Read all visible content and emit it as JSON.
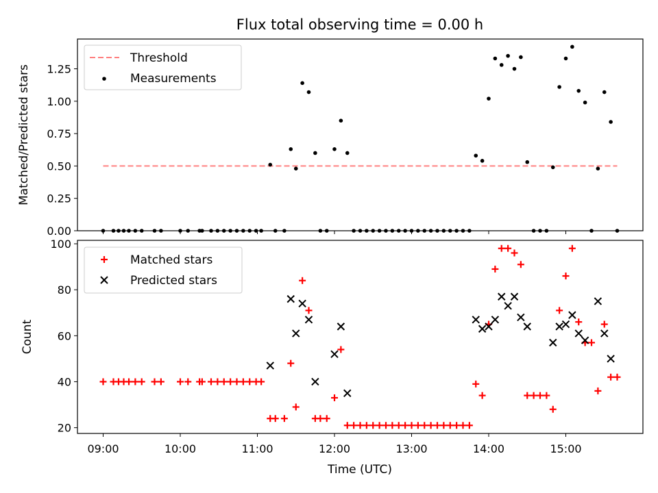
{
  "chart_data": [
    {
      "type": "scatter",
      "title": "Flux total observing time = 0.00 h",
      "xlabel": "",
      "ylabel": "Matched/Predicted stars",
      "xlim": [
        "08:40",
        "16:00"
      ],
      "ylim": [
        0,
        1.48
      ],
      "yticks": [
        0,
        0.25,
        0.5,
        0.75,
        1.0,
        1.25
      ],
      "ytick_labels": [
        "0.00",
        "0.25",
        "0.50",
        "0.75",
        "1.00",
        "1.25"
      ],
      "xticks": [
        "09:00",
        "10:00",
        "11:00",
        "12:00",
        "13:00",
        "14:00",
        "15:00"
      ],
      "legend_position": "top-left",
      "grid": false,
      "threshold": {
        "name": "Threshold",
        "value": 0.5,
        "x_start": "09:00",
        "x_end": "15:40",
        "color": "#ff7f7f"
      },
      "series": [
        {
          "name": "Measurements",
          "color": "#000000",
          "marker": "dot",
          "points": [
            [
              "09:00",
              0
            ],
            [
              "09:08",
              0
            ],
            [
              "09:12",
              0
            ],
            [
              "09:16",
              0
            ],
            [
              "09:20",
              0
            ],
            [
              "09:25",
              0
            ],
            [
              "09:30",
              0
            ],
            [
              "09:40",
              0
            ],
            [
              "09:45",
              0
            ],
            [
              "10:00",
              0
            ],
            [
              "10:06",
              0
            ],
            [
              "10:15",
              0
            ],
            [
              "10:17",
              0
            ],
            [
              "10:24",
              0
            ],
            [
              "10:29",
              0
            ],
            [
              "10:34",
              0
            ],
            [
              "10:39",
              0
            ],
            [
              "10:44",
              0
            ],
            [
              "10:49",
              0
            ],
            [
              "10:54",
              0
            ],
            [
              "10:59",
              0
            ],
            [
              "11:03",
              0
            ],
            [
              "11:10",
              0.51
            ],
            [
              "11:14",
              0
            ],
            [
              "11:21",
              0
            ],
            [
              "11:26",
              0.63
            ],
            [
              "11:30",
              0.48
            ],
            [
              "11:35",
              1.14
            ],
            [
              "11:40",
              1.07
            ],
            [
              "11:45",
              0.6
            ],
            [
              "11:49",
              0
            ],
            [
              "11:54",
              0
            ],
            [
              "12:00",
              0.63
            ],
            [
              "12:05",
              0.85
            ],
            [
              "12:10",
              0.6
            ],
            [
              "12:15",
              0
            ],
            [
              "12:20",
              0
            ],
            [
              "12:25",
              0
            ],
            [
              "12:30",
              0
            ],
            [
              "12:35",
              0
            ],
            [
              "12:40",
              0
            ],
            [
              "12:45",
              0
            ],
            [
              "12:50",
              0
            ],
            [
              "12:55",
              0
            ],
            [
              "13:00",
              0
            ],
            [
              "13:05",
              0
            ],
            [
              "13:10",
              0
            ],
            [
              "13:15",
              0
            ],
            [
              "13:20",
              0
            ],
            [
              "13:25",
              0
            ],
            [
              "13:30",
              0
            ],
            [
              "13:35",
              0
            ],
            [
              "13:40",
              0
            ],
            [
              "13:45",
              0
            ],
            [
              "13:50",
              0.58
            ],
            [
              "13:55",
              0.54
            ],
            [
              "14:00",
              1.02
            ],
            [
              "14:05",
              1.33
            ],
            [
              "14:10",
              1.28
            ],
            [
              "14:15",
              1.35
            ],
            [
              "14:20",
              1.25
            ],
            [
              "14:25",
              1.34
            ],
            [
              "14:30",
              0.53
            ],
            [
              "14:35",
              0
            ],
            [
              "14:40",
              0
            ],
            [
              "14:45",
              0
            ],
            [
              "14:50",
              0.49
            ],
            [
              "14:55",
              1.11
            ],
            [
              "15:00",
              1.33
            ],
            [
              "15:05",
              1.42
            ],
            [
              "15:10",
              1.08
            ],
            [
              "15:15",
              0.99
            ],
            [
              "15:20",
              0
            ],
            [
              "15:25",
              0.48
            ],
            [
              "15:30",
              1.07
            ],
            [
              "15:35",
              0.84
            ],
            [
              "15:40",
              0
            ]
          ]
        }
      ]
    },
    {
      "type": "scatter",
      "title": "",
      "xlabel": "Time (UTC)",
      "ylabel": "Count",
      "xlim": [
        "08:40",
        "16:00"
      ],
      "ylim": [
        17.5,
        101.5
      ],
      "yticks": [
        20,
        40,
        60,
        80,
        100
      ],
      "ytick_labels": [
        "20",
        "40",
        "60",
        "80",
        "100"
      ],
      "xticks": [
        "09:00",
        "10:00",
        "11:00",
        "12:00",
        "13:00",
        "14:00",
        "15:00"
      ],
      "xtick_labels": [
        "09:00",
        "10:00",
        "11:00",
        "12:00",
        "13:00",
        "14:00",
        "15:00"
      ],
      "legend_position": "top-left",
      "grid": false,
      "series": [
        {
          "name": "Matched stars",
          "color": "#ff0000",
          "marker": "plus",
          "points": [
            [
              "09:00",
              40
            ],
            [
              "09:08",
              40
            ],
            [
              "09:12",
              40
            ],
            [
              "09:16",
              40
            ],
            [
              "09:20",
              40
            ],
            [
              "09:25",
              40
            ],
            [
              "09:30",
              40
            ],
            [
              "09:40",
              40
            ],
            [
              "09:45",
              40
            ],
            [
              "10:00",
              40
            ],
            [
              "10:06",
              40
            ],
            [
              "10:15",
              40
            ],
            [
              "10:17",
              40
            ],
            [
              "10:24",
              40
            ],
            [
              "10:29",
              40
            ],
            [
              "10:34",
              40
            ],
            [
              "10:39",
              40
            ],
            [
              "10:44",
              40
            ],
            [
              "10:49",
              40
            ],
            [
              "10:54",
              40
            ],
            [
              "10:59",
              40
            ],
            [
              "11:03",
              40
            ],
            [
              "11:10",
              24
            ],
            [
              "11:14",
              24
            ],
            [
              "11:21",
              24
            ],
            [
              "11:26",
              48
            ],
            [
              "11:30",
              29
            ],
            [
              "11:35",
              84
            ],
            [
              "11:40",
              71
            ],
            [
              "11:45",
              24
            ],
            [
              "11:49",
              24
            ],
            [
              "11:54",
              24
            ],
            [
              "12:00",
              33
            ],
            [
              "12:05",
              54
            ],
            [
              "12:10",
              21
            ],
            [
              "12:15",
              21
            ],
            [
              "12:20",
              21
            ],
            [
              "12:25",
              21
            ],
            [
              "12:30",
              21
            ],
            [
              "12:35",
              21
            ],
            [
              "12:40",
              21
            ],
            [
              "12:45",
              21
            ],
            [
              "12:50",
              21
            ],
            [
              "12:55",
              21
            ],
            [
              "13:00",
              21
            ],
            [
              "13:05",
              21
            ],
            [
              "13:10",
              21
            ],
            [
              "13:15",
              21
            ],
            [
              "13:20",
              21
            ],
            [
              "13:25",
              21
            ],
            [
              "13:30",
              21
            ],
            [
              "13:35",
              21
            ],
            [
              "13:40",
              21
            ],
            [
              "13:45",
              21
            ],
            [
              "13:50",
              39
            ],
            [
              "13:55",
              34
            ],
            [
              "14:00",
              65
            ],
            [
              "14:05",
              89
            ],
            [
              "14:10",
              98
            ],
            [
              "14:15",
              98
            ],
            [
              "14:20",
              96
            ],
            [
              "14:25",
              91
            ],
            [
              "14:30",
              34
            ],
            [
              "14:35",
              34
            ],
            [
              "14:40",
              34
            ],
            [
              "14:45",
              34
            ],
            [
              "14:50",
              28
            ],
            [
              "14:55",
              71
            ],
            [
              "15:00",
              86
            ],
            [
              "15:05",
              98
            ],
            [
              "15:10",
              66
            ],
            [
              "15:15",
              57
            ],
            [
              "15:20",
              57
            ],
            [
              "15:25",
              36
            ],
            [
              "15:30",
              65
            ],
            [
              "15:35",
              42
            ],
            [
              "15:40",
              42
            ]
          ]
        },
        {
          "name": "Predicted stars",
          "color": "#000000",
          "marker": "x",
          "points": [
            [
              "11:10",
              47
            ],
            [
              "11:26",
              76
            ],
            [
              "11:30",
              61
            ],
            [
              "11:35",
              74
            ],
            [
              "11:40",
              67
            ],
            [
              "11:45",
              40
            ],
            [
              "12:00",
              52
            ],
            [
              "12:05",
              64
            ],
            [
              "12:10",
              35
            ],
            [
              "13:50",
              67
            ],
            [
              "13:55",
              63
            ],
            [
              "14:00",
              64
            ],
            [
              "14:05",
              67
            ],
            [
              "14:10",
              77
            ],
            [
              "14:15",
              73
            ],
            [
              "14:20",
              77
            ],
            [
              "14:25",
              68
            ],
            [
              "14:30",
              64
            ],
            [
              "14:50",
              57
            ],
            [
              "14:55",
              64
            ],
            [
              "15:00",
              65
            ],
            [
              "15:05",
              69
            ],
            [
              "15:10",
              61
            ],
            [
              "15:15",
              58
            ],
            [
              "15:25",
              75
            ],
            [
              "15:30",
              61
            ],
            [
              "15:35",
              50
            ]
          ]
        }
      ]
    }
  ]
}
